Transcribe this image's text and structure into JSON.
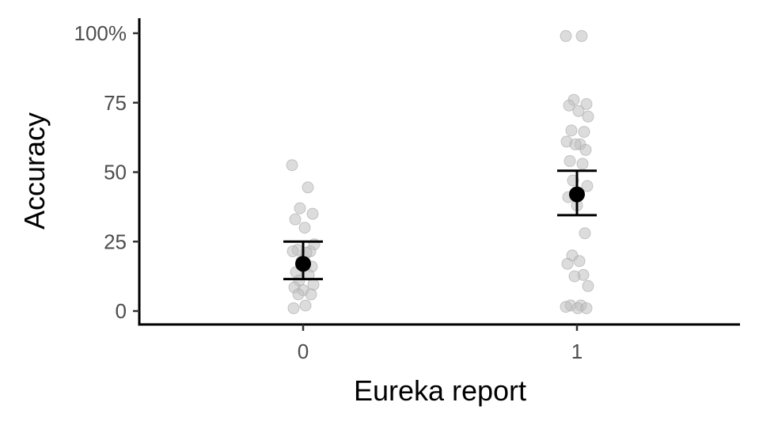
{
  "chart_data": {
    "type": "scatter",
    "title": "",
    "xlabel": "Eureka report",
    "ylabel": "Accuracy",
    "categories": [
      "0",
      "1"
    ],
    "y_ticks": [
      0,
      25,
      50,
      75,
      100
    ],
    "y_tick_labels": [
      "0",
      "25",
      "50",
      "75",
      "100%"
    ],
    "ylim": [
      -5,
      105
    ],
    "grid": false,
    "legend": "none",
    "colors": {
      "points": "#bfbfbf",
      "summary": "#000000",
      "axis": "#000000"
    },
    "points": [
      {
        "category": "0",
        "values": [
          52.5,
          44.5,
          37,
          35,
          33,
          30,
          24,
          22,
          21.5,
          21.5,
          21,
          18,
          16,
          14,
          13,
          11,
          9.5,
          8.5,
          7.5,
          6,
          6,
          2,
          1
        ]
      },
      {
        "category": "1",
        "values": [
          99,
          99,
          76,
          74.5,
          74,
          72,
          70,
          65,
          64.5,
          61,
          60,
          60,
          58,
          54,
          53,
          47,
          45,
          41,
          38,
          28,
          20,
          18,
          17,
          13,
          12.5,
          9,
          2,
          2,
          1.5,
          1,
          1
        ]
      }
    ],
    "summary": [
      {
        "category": "0",
        "mean": 17,
        "lower": 11.5,
        "upper": 25
      },
      {
        "category": "1",
        "mean": 42,
        "lower": 34.5,
        "upper": 50.5
      }
    ]
  }
}
